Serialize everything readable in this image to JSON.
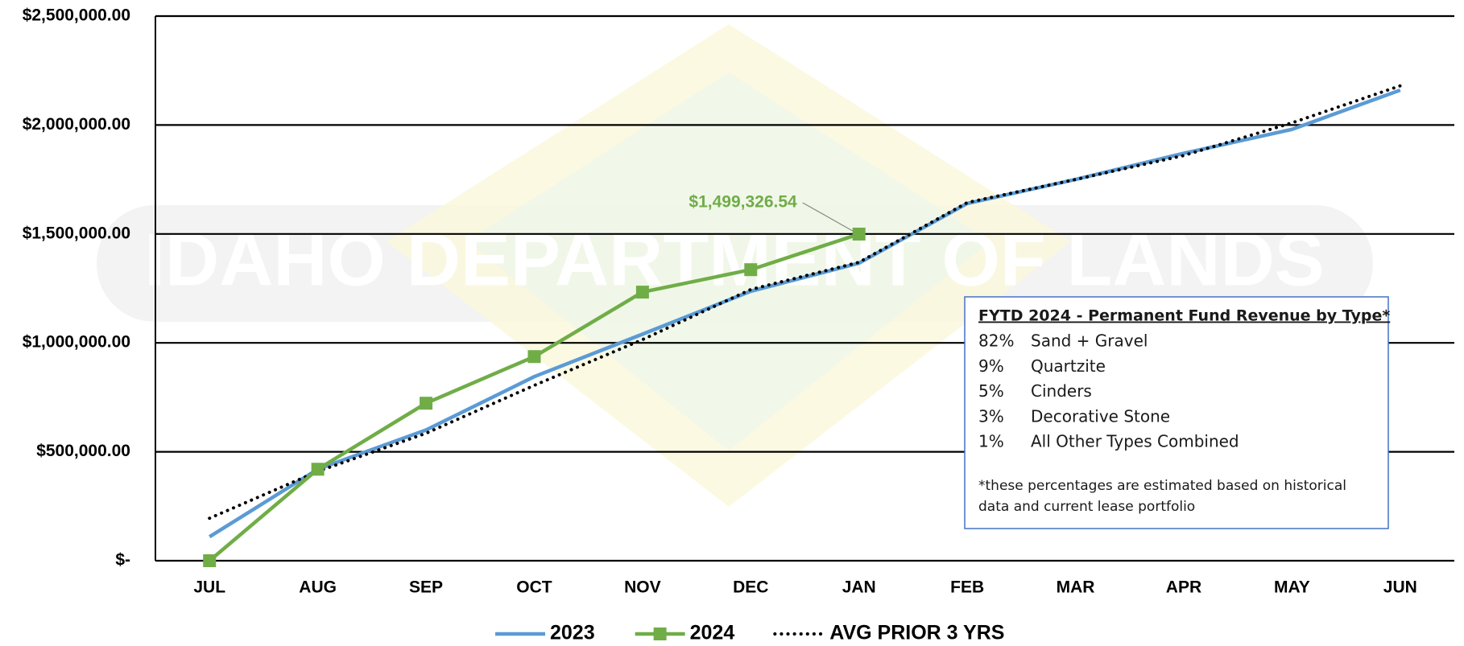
{
  "chart_data": {
    "type": "line",
    "watermark": "IDAHO DEPARTMENT OF LANDS",
    "categories": [
      "JUL",
      "AUG",
      "SEP",
      "OCT",
      "NOV",
      "DEC",
      "JAN",
      "FEB",
      "MAR",
      "APR",
      "MAY",
      "JUN"
    ],
    "series": [
      {
        "name": "2023",
        "color": "#5b9bd5",
        "style": "solid",
        "marker": false,
        "values": [
          110000,
          420000,
          600000,
          845000,
          1040000,
          1237000,
          1366000,
          1640000,
          1750000,
          1870000,
          1980000,
          2160000
        ]
      },
      {
        "name": "2024",
        "color": "#70ad47",
        "style": "solid",
        "marker": true,
        "values": [
          0,
          420000,
          723000,
          937000,
          1233000,
          1336000,
          1499326.54,
          null,
          null,
          null,
          null,
          null
        ],
        "value_labels": [
          null,
          null,
          null,
          null,
          null,
          null,
          "$1,499,326.54",
          null,
          null,
          null,
          null,
          null
        ]
      },
      {
        "name": "AVG PRIOR 3 YRS",
        "color": "#000000",
        "style": "dotted",
        "marker": false,
        "values": [
          195000,
          410000,
          585000,
          805000,
          1015000,
          1245000,
          1370000,
          1644000,
          1750000,
          1860000,
          2010000,
          2180000
        ]
      }
    ],
    "ylim": [
      0,
      2500000
    ],
    "yticks": [
      {
        "value": 0,
        "label": "$-"
      },
      {
        "value": 500000,
        "label": "$500,000.00"
      },
      {
        "value": 1000000,
        "label": "$1,000,000.00"
      },
      {
        "value": 1500000,
        "label": "$1,500,000.00"
      },
      {
        "value": 2000000,
        "label": "$2,000,000.00"
      },
      {
        "value": 2500000,
        "label": "$2,500,000.00"
      }
    ],
    "grid": true,
    "legend": "bottom",
    "text_box": {
      "title": "FYTD 2024 - Permanent Fund Revenue by Type*",
      "items": [
        {
          "percent": "82%",
          "type": "Sand + Gravel"
        },
        {
          "percent": "9%",
          "type": "Quartzite"
        },
        {
          "percent": "5%",
          "type": "Cinders"
        },
        {
          "percent": "3%",
          "type": "Decorative Stone"
        },
        {
          "percent": "1%",
          "type": "All Other Types Combined"
        }
      ],
      "footnote_lines": [
        "*these percentages are estimated based on historical",
        "data and current lease portfolio"
      ]
    }
  }
}
